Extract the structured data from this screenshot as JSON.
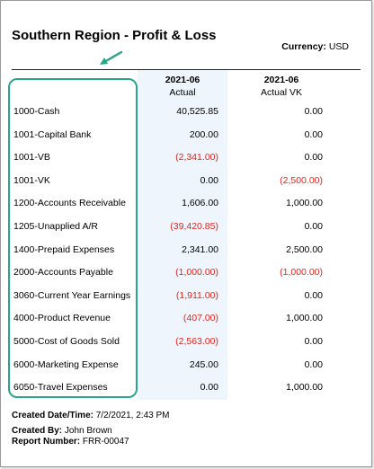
{
  "report": {
    "title": "Southern Region - Profit & Loss",
    "currency_label": "Currency:",
    "currency_value": "USD"
  },
  "columns": [
    {
      "period": "2021-06",
      "subtitle": "Actual"
    },
    {
      "period": "2021-06",
      "subtitle": "Actual VK"
    }
  ],
  "rows": [
    {
      "account": "1000-Cash",
      "v1": "40,525.85",
      "v2": "0.00"
    },
    {
      "account": "1001-Capital Bank",
      "v1": "200.00",
      "v2": "0.00"
    },
    {
      "account": "1001-VB",
      "v1": "(2,341.00)",
      "v2": "0.00"
    },
    {
      "account": "1001-VK",
      "v1": "0.00",
      "v2": "(2,500.00)"
    },
    {
      "account": "1200-Accounts Receivable",
      "v1": "1,606.00",
      "v2": "1,000.00"
    },
    {
      "account": "1205-Unapplied A/R",
      "v1": "(39,420.85)",
      "v2": "0.00"
    },
    {
      "account": "1400-Prepaid Expenses",
      "v1": "2,341.00",
      "v2": "2,500.00"
    },
    {
      "account": "2000-Accounts Payable",
      "v1": "(1,000.00)",
      "v2": "(1,000.00)"
    },
    {
      "account": "3060-Current Year Earnings",
      "v1": "(1,911.00)",
      "v2": "0.00"
    },
    {
      "account": "4000-Product Revenue",
      "v1": "(407.00)",
      "v2": "1,000.00"
    },
    {
      "account": "5000-Cost of Goods Sold",
      "v1": "(2,563.00)",
      "v2": "0.00"
    },
    {
      "account": "6000-Marketing Expense",
      "v1": "245.00",
      "v2": "0.00"
    },
    {
      "account": "6050-Travel Expenses",
      "v1": "0.00",
      "v2": "1,000.00"
    }
  ],
  "footer": {
    "created_label": "Created Date/Time:",
    "created_value": "7/2/2021, 2:43 PM",
    "by_label": "Created By:",
    "by_value": "John Brown",
    "number_label": "Report Number:",
    "number_value": "FRR-00047"
  },
  "colors": {
    "negative": "#e0271f",
    "highlight": "#2aa58a",
    "column_shade": "#eef5fc"
  },
  "icons": {
    "annotation": "arrow-icon"
  }
}
